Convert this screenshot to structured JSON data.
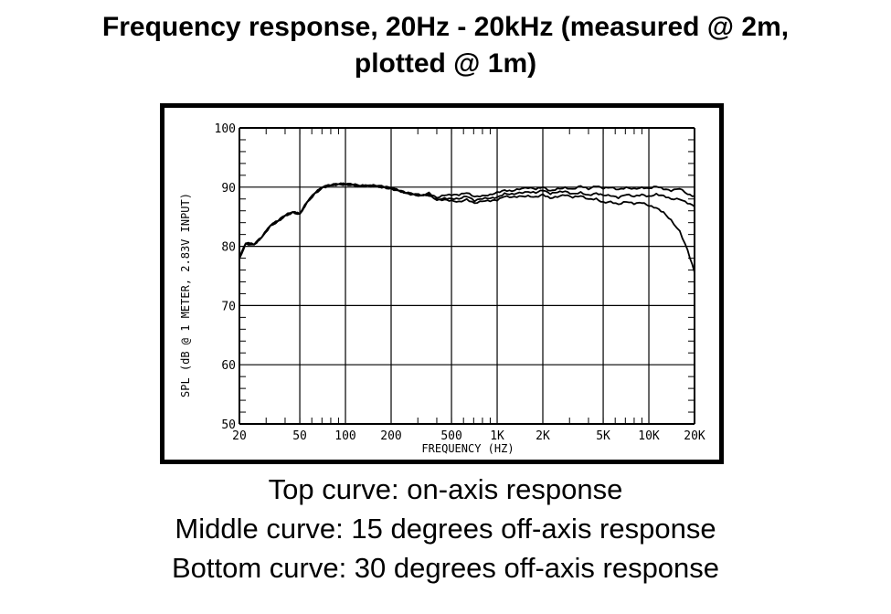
{
  "title_lines": [
    "Frequency response, 20Hz - 20kHz (measured @ 2m,",
    "plotted @ 1m)"
  ],
  "captions": [
    "Top curve: on-axis response",
    "Middle curve: 15 degrees off-axis response",
    "Bottom curve: 30 degrees off-axis response"
  ],
  "chart_data": {
    "type": "line",
    "title": "Frequency response, 20Hz - 20kHz (measured @ 2m, plotted @ 1m)",
    "xlabel": "FREQUENCY (HZ)",
    "ylabel": "SPL (dB @ 1 METER, 2.83V INPUT)",
    "xscale": "log",
    "xlim": [
      20,
      20000
    ],
    "ylim": [
      50,
      100
    ],
    "grid": true,
    "x_tick_values": [
      20,
      50,
      100,
      200,
      500,
      1000,
      2000,
      5000,
      10000,
      20000
    ],
    "x_tick_labels": [
      "20",
      "50",
      "100",
      "200",
      "500",
      "1K",
      "2K",
      "5K",
      "10K",
      "20K"
    ],
    "y_tick_values": [
      50,
      60,
      70,
      80,
      90,
      100
    ],
    "y_tick_labels": [
      "50",
      "60",
      "70",
      "80",
      "90",
      "100"
    ],
    "x": [
      20,
      22,
      25,
      28,
      32,
      36,
      40,
      45,
      50,
      56,
      63,
      71,
      80,
      90,
      100,
      112,
      125,
      140,
      160,
      180,
      200,
      225,
      250,
      280,
      315,
      355,
      400,
      450,
      500,
      560,
      630,
      710,
      800,
      900,
      1000,
      1120,
      1250,
      1400,
      1600,
      1800,
      2000,
      2240,
      2500,
      2800,
      3150,
      3550,
      4000,
      4500,
      5000,
      5600,
      6300,
      7100,
      8000,
      9000,
      10000,
      11200,
      12500,
      14000,
      16000,
      18000,
      20000
    ],
    "series": [
      {
        "values": [
          78,
          80.5,
          80.3,
          81.5,
          83.5,
          84.3,
          85.2,
          85.8,
          85.5,
          87.5,
          89,
          90,
          90.3,
          90.5,
          90.5,
          90.4,
          90.2,
          90.3,
          90.2,
          90,
          89.8,
          89.4,
          89,
          88.8,
          88.6,
          89.1,
          88.2,
          88.6,
          88.6,
          88.6,
          89,
          88.4,
          88.6,
          88.8,
          89.2,
          89.5,
          89.3,
          89.6,
          89.8,
          89.6,
          90,
          89.4,
          89.8,
          90,
          89.7,
          90.2,
          89.6,
          90.1,
          89.7,
          89.9,
          89.6,
          90,
          89.8,
          90,
          89.8,
          90.1,
          89.6,
          89.3,
          89.7,
          88.8,
          88.5
        ]
      },
      {
        "values": [
          78,
          80.5,
          80.3,
          81.5,
          83.5,
          84.3,
          85.2,
          85.8,
          85.5,
          87.5,
          89,
          90,
          90.3,
          90.5,
          90.5,
          90.4,
          90.2,
          90.3,
          90.2,
          90,
          89.8,
          89.4,
          89,
          88.8,
          88.6,
          88.8,
          88,
          88.2,
          88.1,
          88,
          88.4,
          87.6,
          88,
          88.1,
          88.3,
          89,
          88.9,
          89.1,
          89.2,
          89,
          89.4,
          88.8,
          89.1,
          89.3,
          88.9,
          89.2,
          88.7,
          89,
          88.6,
          88.5,
          88.1,
          88.7,
          88.4,
          88.8,
          88.5,
          88.9,
          88.6,
          88,
          87.9,
          87.2,
          86.7
        ]
      },
      {
        "values": [
          78,
          80.5,
          80.3,
          81.5,
          83.5,
          84.3,
          85.2,
          85.8,
          85.5,
          87.5,
          89,
          90,
          90.3,
          90.5,
          90.5,
          90.4,
          90.2,
          90.3,
          90.2,
          90,
          89.8,
          89.4,
          89,
          88.8,
          88.6,
          88.5,
          87.8,
          87.9,
          87.8,
          87.6,
          88,
          87.3,
          87.6,
          87.6,
          87.7,
          88.4,
          88.3,
          88.5,
          88.6,
          88.4,
          88.8,
          88.1,
          88.3,
          88.6,
          88.2,
          88.5,
          88,
          88.1,
          87.5,
          87.6,
          87.1,
          87.5,
          87.1,
          87.3,
          86.8,
          86.5,
          85.8,
          84.5,
          82.6,
          79.4,
          75.6
        ]
      }
    ]
  }
}
